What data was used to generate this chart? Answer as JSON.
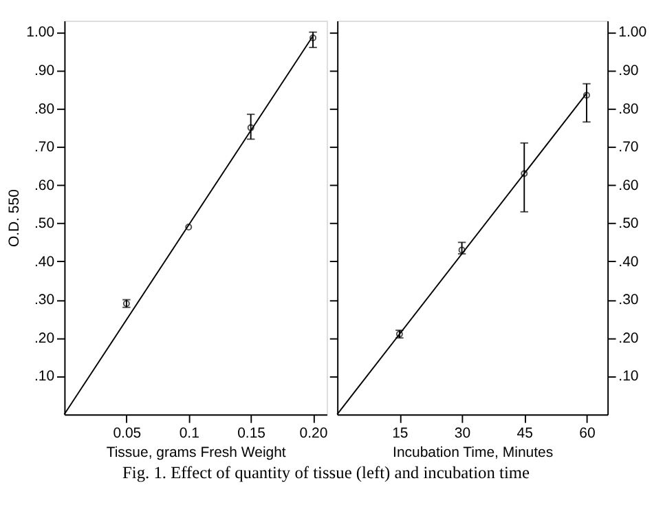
{
  "chart_data": [
    {
      "type": "scatter",
      "xlabel": "Tissue, grams Fresh Weight",
      "ylabel": "O.D. 550",
      "grid": false,
      "xlim": [
        0,
        0.211
      ],
      "xticks": [
        0.05,
        {
          "value": 0.1,
          "label": "0.1"
        },
        0.15,
        {
          "value": 0.2,
          "label": "0.20"
        }
      ],
      "ylim": [
        0,
        1.03
      ],
      "yticks": [
        {
          "value": 0.1,
          "label": ".10"
        },
        {
          "value": 0.2,
          "label": ".20"
        },
        {
          "value": 0.3,
          "label": ".30"
        },
        {
          "value": 0.4,
          "label": ".40"
        },
        {
          "value": 0.5,
          "label": ".50"
        },
        {
          "value": 0.6,
          "label": ".60"
        },
        {
          "value": 0.7,
          "label": ".70"
        },
        {
          "value": 0.8,
          "label": ".80"
        },
        {
          "value": 0.9,
          "label": ".90"
        },
        {
          "value": 1.0,
          "label": "1.00"
        }
      ],
      "annotations": [
        "Fig. 1. Effect of quantity of tissue (left) and incubation time"
      ],
      "series": [
        {
          "type": "scatter",
          "marker": "circle",
          "color": "#000000",
          "x": [
            0.05,
            0.1,
            0.15,
            0.2
          ],
          "values": [
            0.29,
            0.49,
            0.75,
            0.985
          ],
          "errors": [
            0.01,
            null,
            [
              0.72,
              0.785
            ],
            [
              0.96,
              1.0
            ]
          ]
        },
        {
          "type": "line",
          "color": "#000000",
          "x": [
            0,
            0.2
          ],
          "values": [
            0,
            0.99
          ]
        }
      ]
    },
    {
      "type": "scatter",
      "xlabel": "Incubation Time, Minutes",
      "grid": false,
      "xlim": [
        0,
        65
      ],
      "xticks": [
        15,
        30,
        45,
        60
      ],
      "ylim": [
        0,
        1.03
      ],
      "yticks": [
        {
          "value": 0.1,
          "label": ".10"
        },
        {
          "value": 0.2,
          "label": ".20"
        },
        {
          "value": 0.3,
          "label": ".30"
        },
        {
          "value": 0.4,
          "label": ".40"
        },
        {
          "value": 0.5,
          "label": ".50"
        },
        {
          "value": 0.6,
          "label": ".60"
        },
        {
          "value": 0.7,
          "label": ".70"
        },
        {
          "value": 0.8,
          "label": ".80"
        },
        {
          "value": 0.9,
          "label": ".90"
        },
        {
          "value": 1.0,
          "label": "1.00"
        }
      ],
      "series": [
        {
          "type": "scatter",
          "marker": "circle",
          "color": "#000000",
          "x": [
            15,
            30,
            45,
            60
          ],
          "values": [
            0.21,
            0.43,
            0.63,
            0.835
          ],
          "errors": [
            0.01,
            [
              0.42,
              0.45
            ],
            [
              0.53,
              0.71
            ],
            [
              0.765,
              0.865
            ]
          ]
        },
        {
          "type": "line",
          "color": "#000000",
          "x": [
            0,
            60
          ],
          "values": [
            0,
            0.84
          ]
        }
      ]
    }
  ]
}
